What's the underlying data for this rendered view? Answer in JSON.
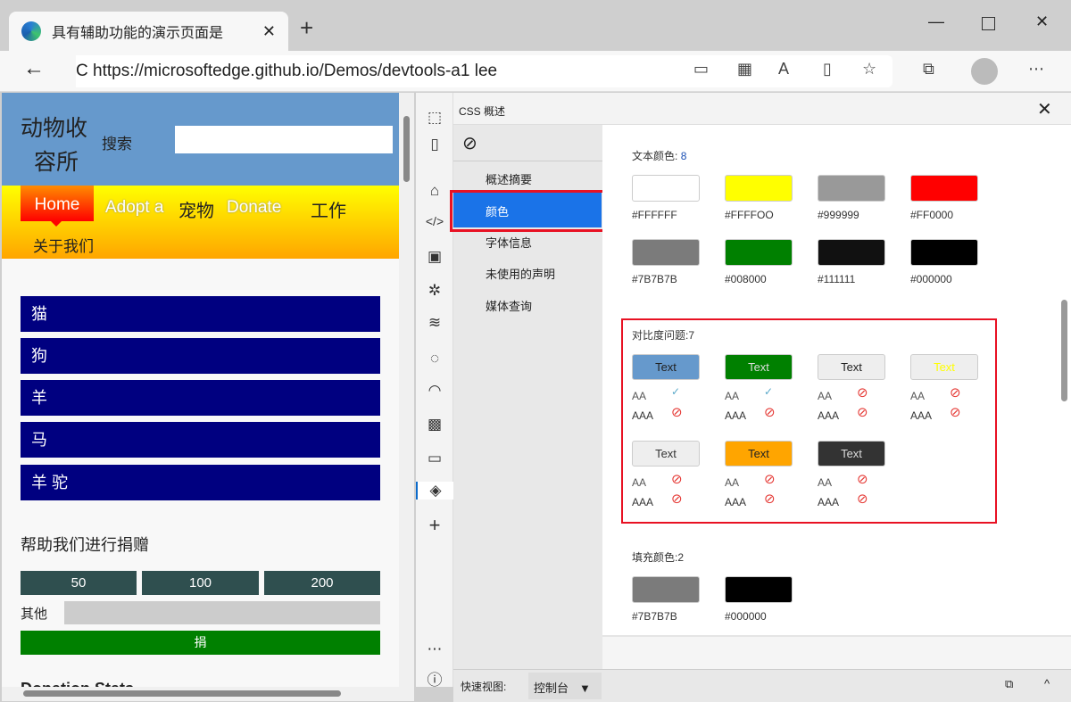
{
  "browser": {
    "tab_title": "具有辅助功能的演示页面是",
    "url": "C https://microsoftedge.github.io/Demos/devtools-a1 lee"
  },
  "page": {
    "site_title_1": "动物收",
    "site_title_2": "容所",
    "search_label": "搜索",
    "search_value": "",
    "nav": [
      "Home",
      "Adopt a",
      "宠物",
      "Donate",
      "工作",
      "关于我们"
    ],
    "animals": [
      "猫",
      "狗",
      "羊",
      "马",
      "羊 驼"
    ],
    "donate_heading": "帮助我们进行捐赠",
    "amounts": [
      "50",
      "100",
      "200"
    ],
    "other_label": "其他",
    "other_value": "",
    "donate_button": "捐",
    "next_heading": "Donation Stats"
  },
  "devtools": {
    "panel_title": "CSS 概述",
    "sidebar": [
      "概述摘要",
      "颜色",
      "字体信息",
      "未使用的声明",
      "媒体查询"
    ],
    "selected": "颜色",
    "text_colors": {
      "label": "文本颜色:",
      "count": "8",
      "colors": [
        "#FFFFFF",
        "#FFFF00",
        "#999999",
        "#FF0000",
        "#7B7B7B",
        "#008000",
        "#111111",
        "#000000"
      ],
      "labels": [
        "#FFFFFF",
        "#FFFFOO",
        "#999999",
        "#FF0000",
        "#7B7B7B",
        "#008000",
        "#111111",
        "#000000"
      ]
    },
    "contrast": {
      "label": "对比度问题:",
      "count": "7",
      "items": [
        {
          "text": "Text",
          "bg": "#6699cc",
          "fg": "#222222",
          "aa": "pass",
          "aaa": "fail"
        },
        {
          "text": "Text",
          "bg": "#008000",
          "fg": "#dddddd",
          "aa": "pass",
          "aaa": "fail"
        },
        {
          "text": "Text",
          "bg": "#eeeeee",
          "fg": "#222222",
          "aa": "fail",
          "aaa": "fail"
        },
        {
          "text": "Text",
          "bg": "#eeeeee",
          "fg": "#ffff00",
          "aa": "fail",
          "aaa": "fail"
        },
        {
          "text": "Text",
          "bg": "#eeeeee",
          "fg": "#333333",
          "aa": "fail",
          "aaa": "fail"
        },
        {
          "text": "Text",
          "bg": "#ffa500",
          "fg": "#222222",
          "aa": "fail",
          "aaa": "fail"
        },
        {
          "text": "Text",
          "bg": "#333333",
          "fg": "#dddddd",
          "aa": "fail",
          "aaa": "fail"
        }
      ],
      "aa_label": "AA",
      "aaa_label": "AAA"
    },
    "fill_colors": {
      "label": "填充颜色:",
      "count": "2",
      "colors": [
        "#7B7B7B",
        "#000000"
      ]
    },
    "drawer": {
      "label": "快速视图:",
      "select": "控制台"
    }
  }
}
